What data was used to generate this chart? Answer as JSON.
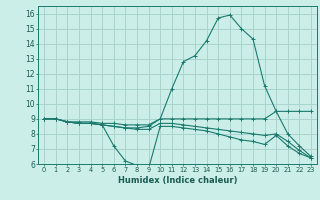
{
  "xlabel": "Humidex (Indice chaleur)",
  "xlim": [
    -0.5,
    23.5
  ],
  "ylim": [
    6,
    16.5
  ],
  "xticks": [
    0,
    1,
    2,
    3,
    4,
    5,
    6,
    7,
    8,
    9,
    10,
    11,
    12,
    13,
    14,
    15,
    16,
    17,
    18,
    19,
    20,
    21,
    22,
    23
  ],
  "yticks": [
    6,
    7,
    8,
    9,
    10,
    11,
    12,
    13,
    14,
    15,
    16
  ],
  "bg_color": "#cceee8",
  "grid_color": "#aad4ce",
  "line_color": "#1a7a6e",
  "lines": [
    {
      "x": [
        0,
        1,
        2,
        3,
        4,
        5,
        6,
        7,
        8,
        9,
        10,
        11,
        12,
        13,
        14,
        15,
        16,
        17,
        18,
        19,
        20,
        21,
        22,
        23
      ],
      "y": [
        9.0,
        9.0,
        8.8,
        8.8,
        8.8,
        8.7,
        8.7,
        8.6,
        8.6,
        8.6,
        9.0,
        9.0,
        9.0,
        9.0,
        9.0,
        9.0,
        9.0,
        9.0,
        9.0,
        9.0,
        9.5,
        9.5,
        9.5,
        9.5
      ]
    },
    {
      "x": [
        0,
        1,
        2,
        3,
        4,
        5,
        6,
        7,
        8,
        9,
        10,
        11,
        12,
        13,
        14,
        15,
        16,
        17,
        18,
        19,
        20,
        21,
        22,
        23
      ],
      "y": [
        9.0,
        9.0,
        8.8,
        8.7,
        8.7,
        8.6,
        7.2,
        6.2,
        5.9,
        5.7,
        8.5,
        8.5,
        8.4,
        8.3,
        8.2,
        8.0,
        7.8,
        7.6,
        7.5,
        7.3,
        7.9,
        7.2,
        6.7,
        6.4
      ]
    },
    {
      "x": [
        0,
        1,
        2,
        3,
        4,
        5,
        6,
        7,
        8,
        9,
        10,
        11,
        12,
        13,
        14,
        15,
        16,
        17,
        18,
        19,
        20,
        21,
        22,
        23
      ],
      "y": [
        9.0,
        9.0,
        8.8,
        8.7,
        8.7,
        8.6,
        8.5,
        8.4,
        8.4,
        8.5,
        9.0,
        11.0,
        12.8,
        13.2,
        14.2,
        15.7,
        15.9,
        15.0,
        14.3,
        11.2,
        9.5,
        8.0,
        7.2,
        6.5
      ]
    },
    {
      "x": [
        0,
        1,
        2,
        3,
        4,
        5,
        6,
        7,
        8,
        9,
        10,
        11,
        12,
        13,
        14,
        15,
        16,
        17,
        18,
        19,
        20,
        21,
        22,
        23
      ],
      "y": [
        9.0,
        9.0,
        8.8,
        8.7,
        8.7,
        8.6,
        8.5,
        8.4,
        8.3,
        8.3,
        8.7,
        8.7,
        8.6,
        8.5,
        8.4,
        8.3,
        8.2,
        8.1,
        8.0,
        7.9,
        8.0,
        7.5,
        6.9,
        6.4
      ]
    }
  ]
}
